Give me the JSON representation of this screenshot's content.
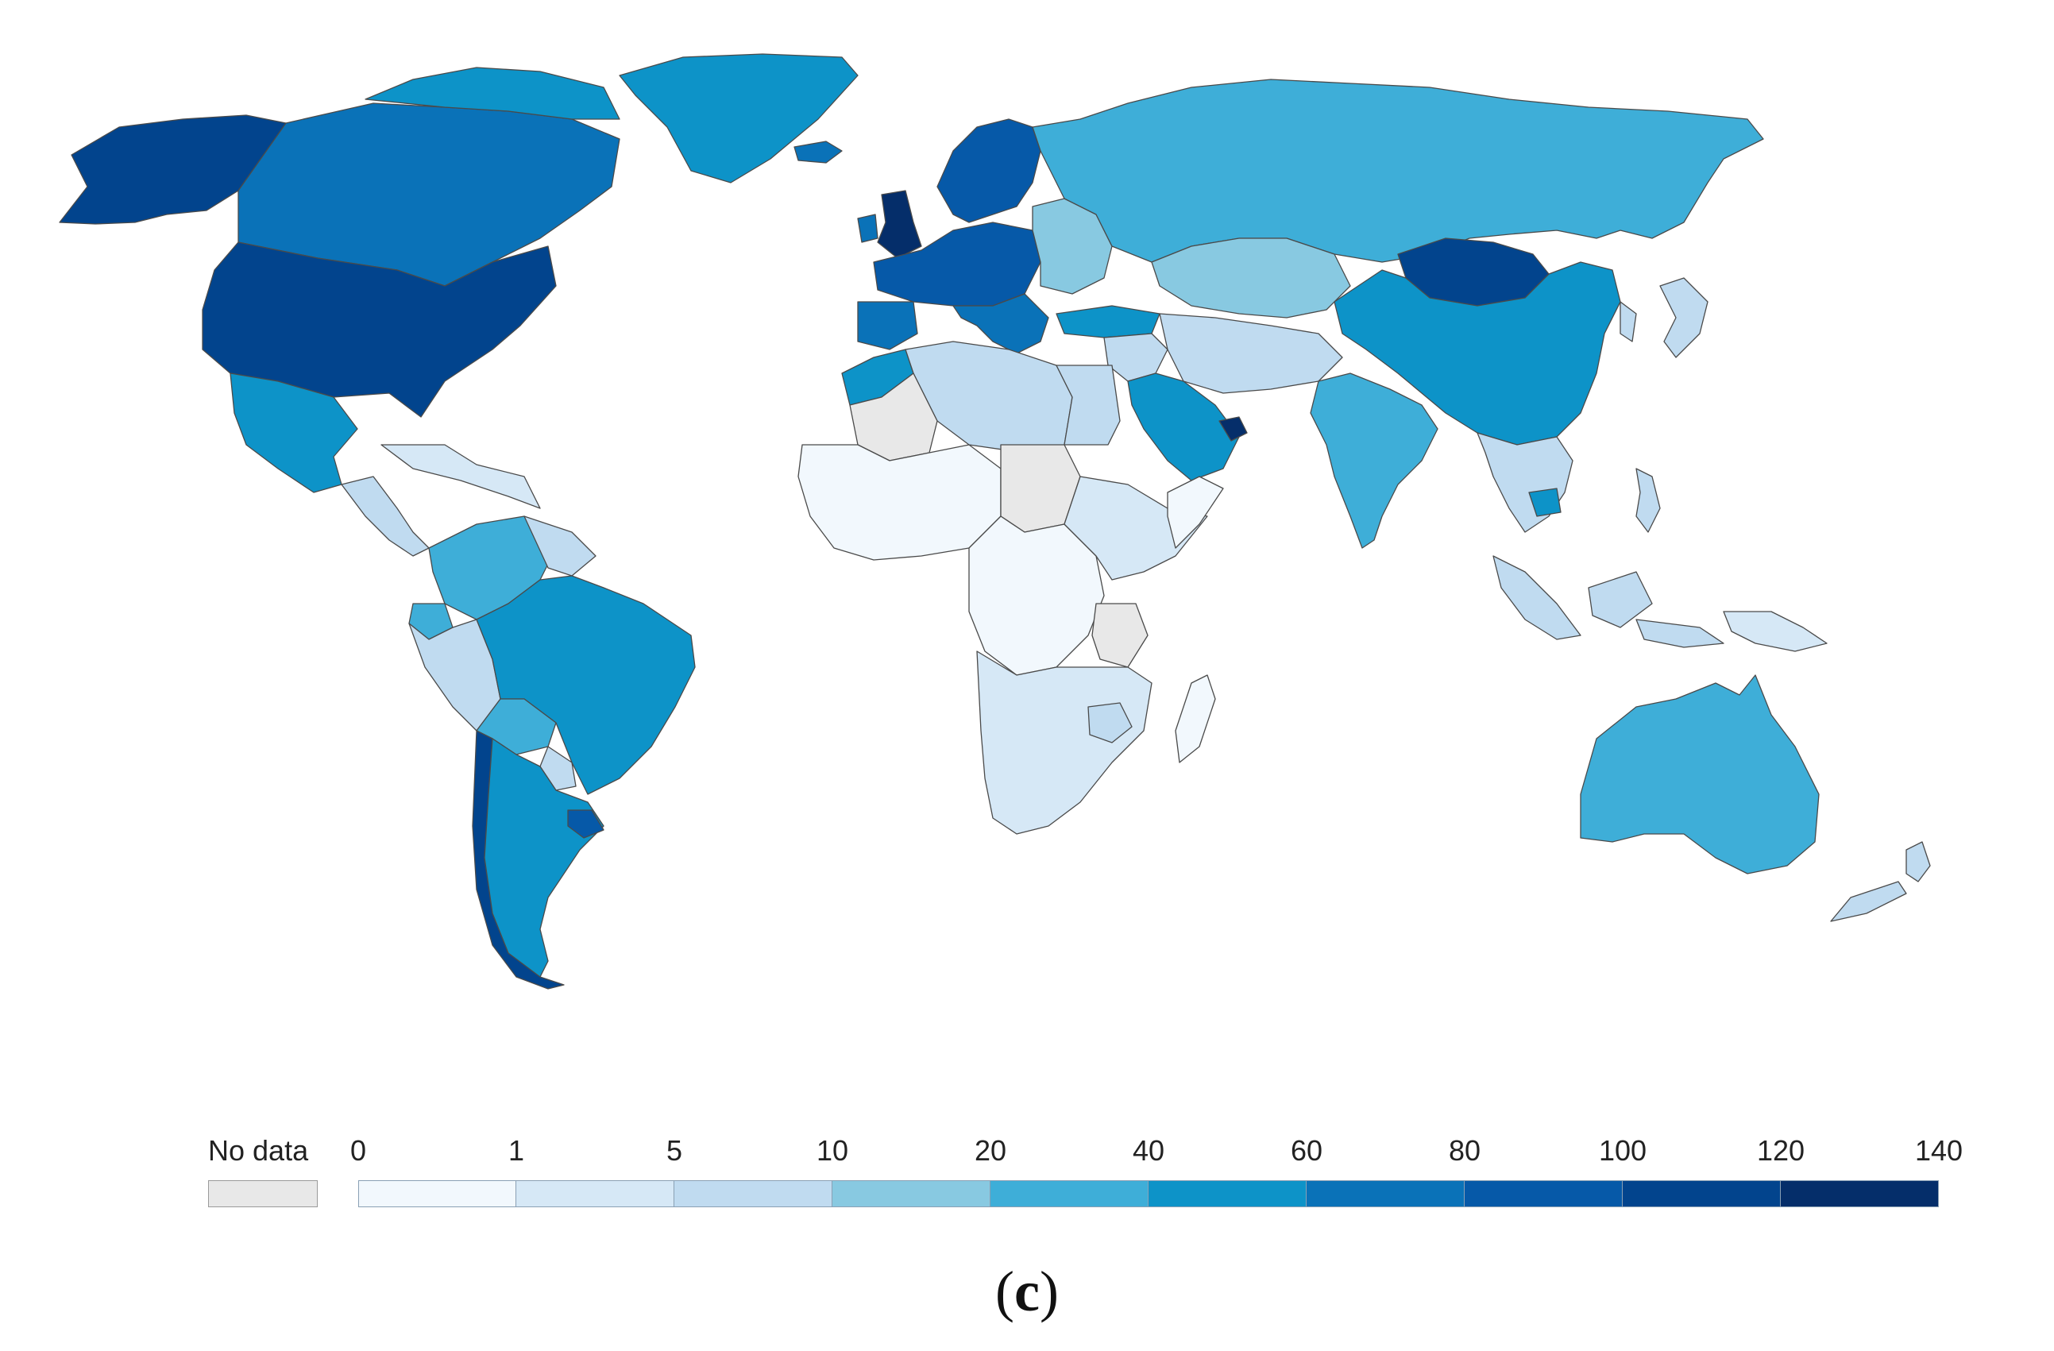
{
  "legend": {
    "no_data_label": "No data",
    "no_data_color": "#e8e8e8",
    "ticks": [
      "0",
      "1",
      "5",
      "10",
      "20",
      "40",
      "60",
      "80",
      "100",
      "120",
      "140"
    ],
    "colors": [
      "#f2f8fd",
      "#d6e8f6",
      "#c0dbf0",
      "#88c9e1",
      "#3eaed8",
      "#0d93c8",
      "#0a72b8",
      "#0659a8",
      "#02448d",
      "#052e6a"
    ]
  },
  "caption": {
    "open": "(",
    "letter": "c",
    "close": ")"
  },
  "regions": [
    {
      "name": "alaska",
      "level": 8
    },
    {
      "name": "canada",
      "level": 6
    },
    {
      "name": "canada-islands",
      "level": 5
    },
    {
      "name": "greenland",
      "level": 5
    },
    {
      "name": "iceland",
      "level": 6
    },
    {
      "name": "usa",
      "level": 8
    },
    {
      "name": "mexico",
      "level": 5
    },
    {
      "name": "central-america",
      "level": 2
    },
    {
      "name": "caribbean",
      "level": 1
    },
    {
      "name": "colombia-venezuela",
      "level": 4
    },
    {
      "name": "guianas",
      "level": 2
    },
    {
      "name": "ecuador",
      "level": 4
    },
    {
      "name": "peru",
      "level": 2
    },
    {
      "name": "brazil",
      "level": 5
    },
    {
      "name": "bolivia",
      "level": 4
    },
    {
      "name": "paraguay",
      "level": 2
    },
    {
      "name": "chile",
      "level": 8
    },
    {
      "name": "argentina",
      "level": 5
    },
    {
      "name": "uruguay",
      "level": 7
    },
    {
      "name": "uk",
      "level": 9
    },
    {
      "name": "ireland",
      "level": 6
    },
    {
      "name": "scandinavia",
      "level": 7
    },
    {
      "name": "western-europe",
      "level": 7
    },
    {
      "name": "iberia",
      "level": 6
    },
    {
      "name": "italy-balkans",
      "level": 6
    },
    {
      "name": "eastern-europe",
      "level": 3
    },
    {
      "name": "turkey",
      "level": 5
    },
    {
      "name": "russia",
      "level": 4
    },
    {
      "name": "kazakhstan-central-asia",
      "level": 3
    },
    {
      "name": "mongolia",
      "level": 8
    },
    {
      "name": "china",
      "level": 5
    },
    {
      "name": "korea-japan",
      "level": 2
    },
    {
      "name": "middle-east",
      "level": 2
    },
    {
      "name": "iran-afghanistan",
      "level": 2
    },
    {
      "name": "saudi-arabia",
      "level": 5
    },
    {
      "name": "uae",
      "level": 9
    },
    {
      "name": "india",
      "level": 4
    },
    {
      "name": "southeast-asia",
      "level": 2
    },
    {
      "name": "cambodia",
      "level": 5
    },
    {
      "name": "indonesia",
      "level": 2
    },
    {
      "name": "papua",
      "level": 1
    },
    {
      "name": "philippines",
      "level": 2
    },
    {
      "name": "australia",
      "level": 4
    },
    {
      "name": "new-zealand",
      "level": 2
    },
    {
      "name": "north-africa-west",
      "level": 5
    },
    {
      "name": "algeria-libya",
      "level": 2
    },
    {
      "name": "egypt",
      "level": 2
    },
    {
      "name": "sahara-nodata",
      "level": -1
    },
    {
      "name": "west-africa",
      "level": 0
    },
    {
      "name": "sudan-nodata",
      "level": -1
    },
    {
      "name": "central-africa",
      "level": 0
    },
    {
      "name": "east-africa",
      "level": 1
    },
    {
      "name": "somalia",
      "level": 0
    },
    {
      "name": "tanzania-nodata",
      "level": -1
    },
    {
      "name": "southern-africa",
      "level": 1
    },
    {
      "name": "zimbabwe",
      "level": 2
    },
    {
      "name": "madagascar",
      "level": 0
    }
  ]
}
